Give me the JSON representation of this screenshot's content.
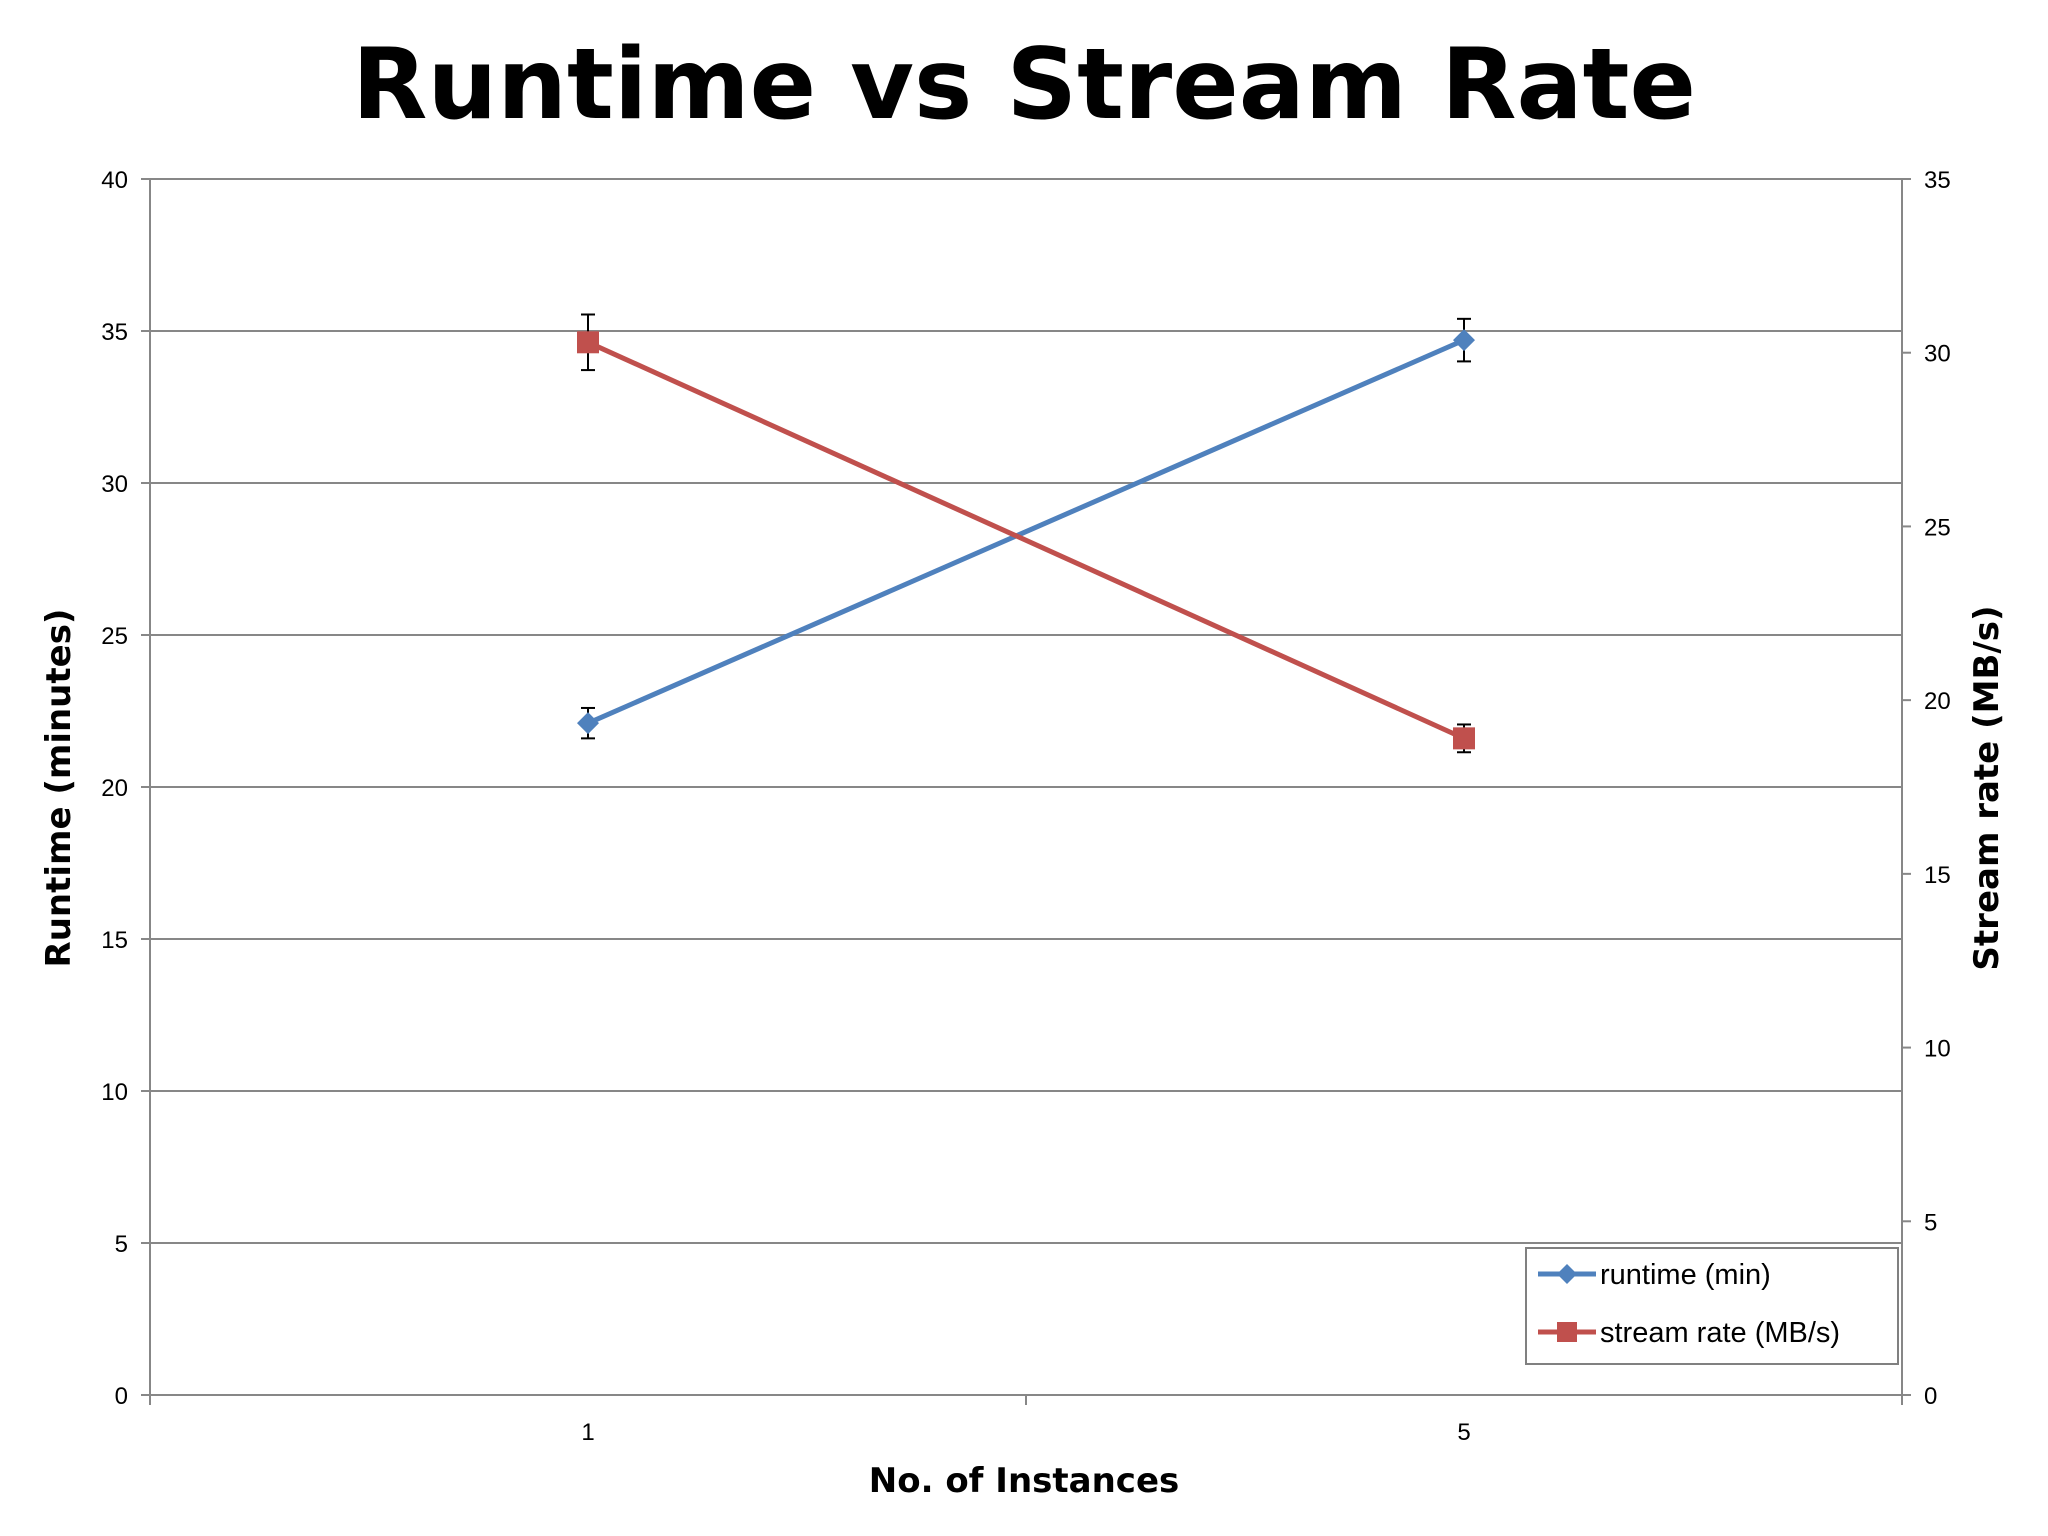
{
  "chart_data": {
    "type": "line",
    "title": "Runtime vs Stream Rate",
    "xlabel": "No. of Instances",
    "ylabel": "Runtime (minutes)",
    "y2label": "Stream rate (MB/s)",
    "categories": [
      "1",
      "5"
    ],
    "ylim": [
      0,
      40
    ],
    "y2lim": [
      0,
      35
    ],
    "yticks": [
      0,
      5,
      10,
      15,
      20,
      25,
      30,
      35,
      40
    ],
    "y2ticks": [
      0,
      5,
      10,
      15,
      20,
      25,
      30,
      35
    ],
    "grid": true,
    "legend_position": "bottom-right",
    "series": [
      {
        "name": "runtime (min)",
        "axis": "left",
        "marker": "diamond",
        "color": "#4F81BD",
        "values": [
          22.1,
          34.7
        ],
        "error": [
          0.5,
          0.7
        ]
      },
      {
        "name": "stream rate (MB/s)",
        "axis": "right",
        "marker": "square",
        "color": "#C0504D",
        "values": [
          30.3,
          18.9
        ],
        "error": [
          0.8,
          0.4
        ]
      }
    ]
  }
}
